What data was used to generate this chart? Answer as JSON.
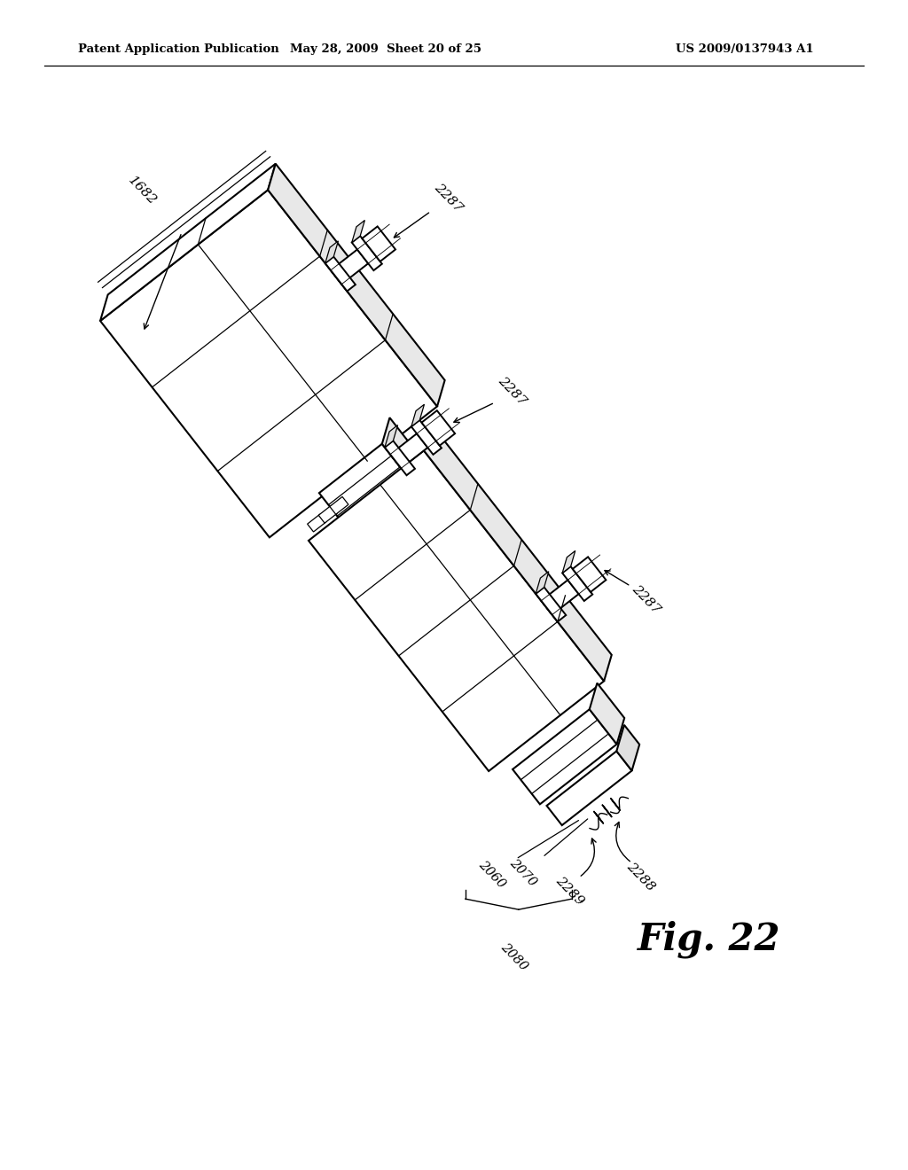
{
  "background_color": "#ffffff",
  "header_left": "Patent Application Publication",
  "header_center": "May 28, 2009  Sheet 20 of 25",
  "header_right": "US 2009/0137943 A1",
  "fig_label": "Fig. 22",
  "line_color": "#000000",
  "lw_main": 1.5,
  "lw_inner": 0.9,
  "rotation_deg": -38
}
